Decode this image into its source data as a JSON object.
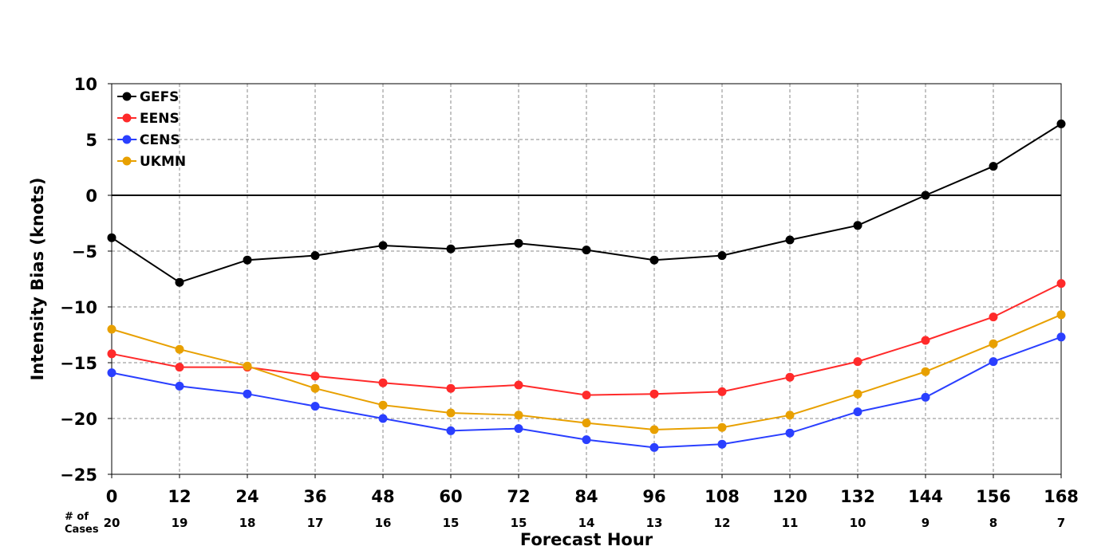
{
  "chart_data": {
    "type": "line",
    "xlabel": "Forecast Hour",
    "ylabel": "Intensity Bias (knots)",
    "ylim": [
      -25,
      10
    ],
    "yticks": [
      10,
      5,
      0,
      -5,
      -10,
      -15,
      -20,
      -25
    ],
    "y_tick_labels": [
      "10",
      "5",
      "0",
      "−5",
      "−10",
      "−15",
      "−20",
      "−25"
    ],
    "xlim": [
      0,
      168
    ],
    "x": [
      0,
      12,
      24,
      36,
      48,
      60,
      72,
      84,
      96,
      108,
      120,
      132,
      144,
      156,
      168
    ],
    "x_tick_labels": [
      "0",
      "12",
      "24",
      "36",
      "48",
      "60",
      "72",
      "84",
      "96",
      "108",
      "120",
      "132",
      "144",
      "156",
      "168"
    ],
    "cases_label": "# of\nCases",
    "cases": [
      "20",
      "19",
      "18",
      "17",
      "16",
      "15",
      "15",
      "14",
      "13",
      "12",
      "11",
      "10",
      "9",
      "8",
      "7"
    ],
    "grid": true,
    "zero_line": true,
    "legend_position": "top-left",
    "series": [
      {
        "name": "GEFS",
        "color": "#000000",
        "values": [
          -3.8,
          -7.8,
          -5.8,
          -5.4,
          -4.5,
          -4.8,
          -4.3,
          -4.9,
          -5.8,
          -5.4,
          -4.0,
          -2.7,
          0.0,
          2.6,
          6.4
        ]
      },
      {
        "name": "EENS",
        "color": "#ff2a2a",
        "values": [
          -14.2,
          -15.4,
          -15.4,
          -16.2,
          -16.8,
          -17.3,
          -17.0,
          -17.9,
          -17.8,
          -17.6,
          -16.3,
          -14.9,
          -13.0,
          -10.9,
          -7.9
        ]
      },
      {
        "name": "CENS",
        "color": "#2a3fff",
        "values": [
          -15.9,
          -17.1,
          -17.8,
          -18.9,
          -20.0,
          -21.1,
          -20.9,
          -21.9,
          -22.6,
          -22.3,
          -21.3,
          -19.4,
          -18.1,
          -14.9,
          -12.7
        ]
      },
      {
        "name": "UKMN",
        "color": "#e8a000",
        "values": [
          -12.0,
          -13.8,
          -15.3,
          -17.3,
          -18.8,
          -19.5,
          -19.7,
          -20.4,
          -21.0,
          -20.8,
          -19.7,
          -17.8,
          -15.8,
          -13.3,
          -10.7
        ]
      }
    ]
  }
}
